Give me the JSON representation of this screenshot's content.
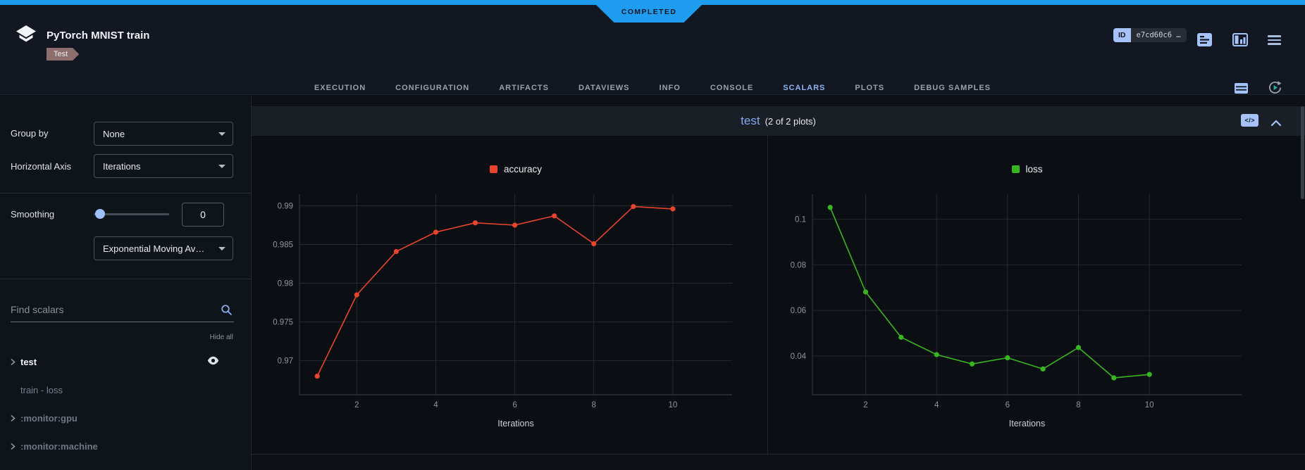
{
  "status": {
    "label": "COMPLETED"
  },
  "header": {
    "title": "PyTorch MNIST train",
    "tag": "Test",
    "id_badge": {
      "label": "ID",
      "value": "e7cd60c6 …"
    },
    "icons": [
      "comment-icon",
      "panel-layout-icon",
      "menu-icon"
    ]
  },
  "tabs": {
    "items": [
      "EXECUTION",
      "CONFIGURATION",
      "ARTIFACTS",
      "DATAVIEWS",
      "INFO",
      "CONSOLE",
      "SCALARS",
      "PLOTS",
      "DEBUG SAMPLES"
    ],
    "active": "SCALARS",
    "right_icons": [
      "table-icon",
      "auto-refresh-icon"
    ]
  },
  "sidebar": {
    "group_by_label": "Group by",
    "group_by_value": "None",
    "horizontal_axis_label": "Horizontal Axis",
    "horizontal_axis_value": "Iterations",
    "smoothing_label": "Smoothing",
    "smoothing_value": "0",
    "smoothing_method": "Exponential Moving Av…",
    "search_placeholder": "Find scalars",
    "hide_all_label": "Hide all",
    "metrics": [
      {
        "label": "test",
        "chevron": true,
        "eye": true,
        "emphasis": true
      },
      {
        "label": "train - loss",
        "chevron": false,
        "eye": false,
        "emphasis": false
      },
      {
        "label": ":monitor:gpu",
        "chevron": true,
        "eye": false,
        "emphasis": false
      },
      {
        "label": ":monitor:machine",
        "chevron": true,
        "eye": false,
        "emphasis": false
      }
    ]
  },
  "group_header": {
    "title": "test",
    "count_label": "(2 of 2 plots)",
    "code_chip": "</>"
  },
  "chart_data": [
    {
      "type": "line",
      "title": "accuracy",
      "legend": "accuracy",
      "color": "#e8442d",
      "x": [
        1,
        2,
        3,
        4,
        5,
        6,
        7,
        8,
        9,
        10
      ],
      "y": [
        0.968,
        0.9785,
        0.9841,
        0.9866,
        0.9878,
        0.9875,
        0.9887,
        0.9851,
        0.9899,
        0.9896
      ],
      "xlabel": "Iterations",
      "xticks": [
        2,
        4,
        6,
        8,
        10
      ],
      "yticks": [
        0.97,
        0.975,
        0.98,
        0.985,
        0.99
      ],
      "xlim": [
        0.55,
        11.5
      ],
      "ylim": [
        0.9656,
        0.9915
      ],
      "grid": true,
      "legend_position": "top-center"
    },
    {
      "type": "line",
      "title": "loss",
      "legend": "loss",
      "color": "#38b621",
      "x": [
        1,
        2,
        3,
        4,
        5,
        6,
        7,
        8,
        9,
        10
      ],
      "y": [
        0.1052,
        0.0681,
        0.0482,
        0.0406,
        0.0365,
        0.0392,
        0.0343,
        0.0437,
        0.0304,
        0.0319
      ],
      "xlabel": "Iterations",
      "xticks": [
        2,
        4,
        6,
        8,
        10
      ],
      "yticks": [
        0.04,
        0.06,
        0.08,
        0.1
      ],
      "xlim": [
        0.5,
        12.6
      ],
      "ylim": [
        0.023,
        0.111
      ],
      "grid": true,
      "legend_position": "top-center"
    }
  ]
}
